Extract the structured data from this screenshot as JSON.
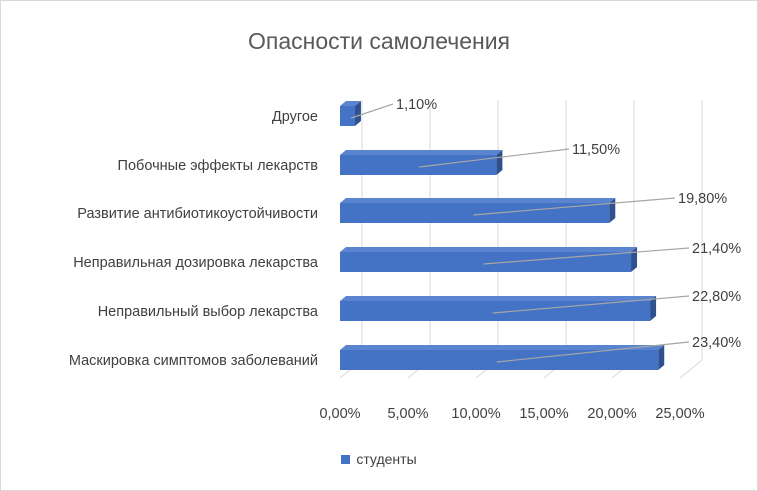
{
  "chart_data": {
    "type": "bar",
    "orientation": "horizontal",
    "style": "3d",
    "title": "Опасности самолечения",
    "categories": [
      "Маскировка симптомов заболеваний",
      "Неправильный выбор лекарства",
      "Неправильная дозировка лекарства",
      "Развитие антибиотикоустойчивости",
      "Побочные эффекты лекарств",
      "Другое"
    ],
    "series": [
      {
        "name": "студенты",
        "values": [
          23.4,
          22.8,
          21.4,
          19.8,
          11.5,
          1.1
        ],
        "data_labels": [
          "23,40%",
          "22,80%",
          "21,40%",
          "19,80%",
          "11,50%",
          "1,10%"
        ]
      }
    ],
    "xlim": [
      0,
      25
    ],
    "x_ticks": [
      "0,00%",
      "5,00%",
      "10,00%",
      "15,00%",
      "20,00%",
      "25,00%"
    ],
    "grid": true,
    "legend": "bottom",
    "colors": {
      "bar_front": "#4472c4",
      "bar_top": "#5b84d0",
      "bar_side": "#2f528f",
      "grid": "#d9d9d9",
      "leader": "#a6a6a6"
    }
  }
}
